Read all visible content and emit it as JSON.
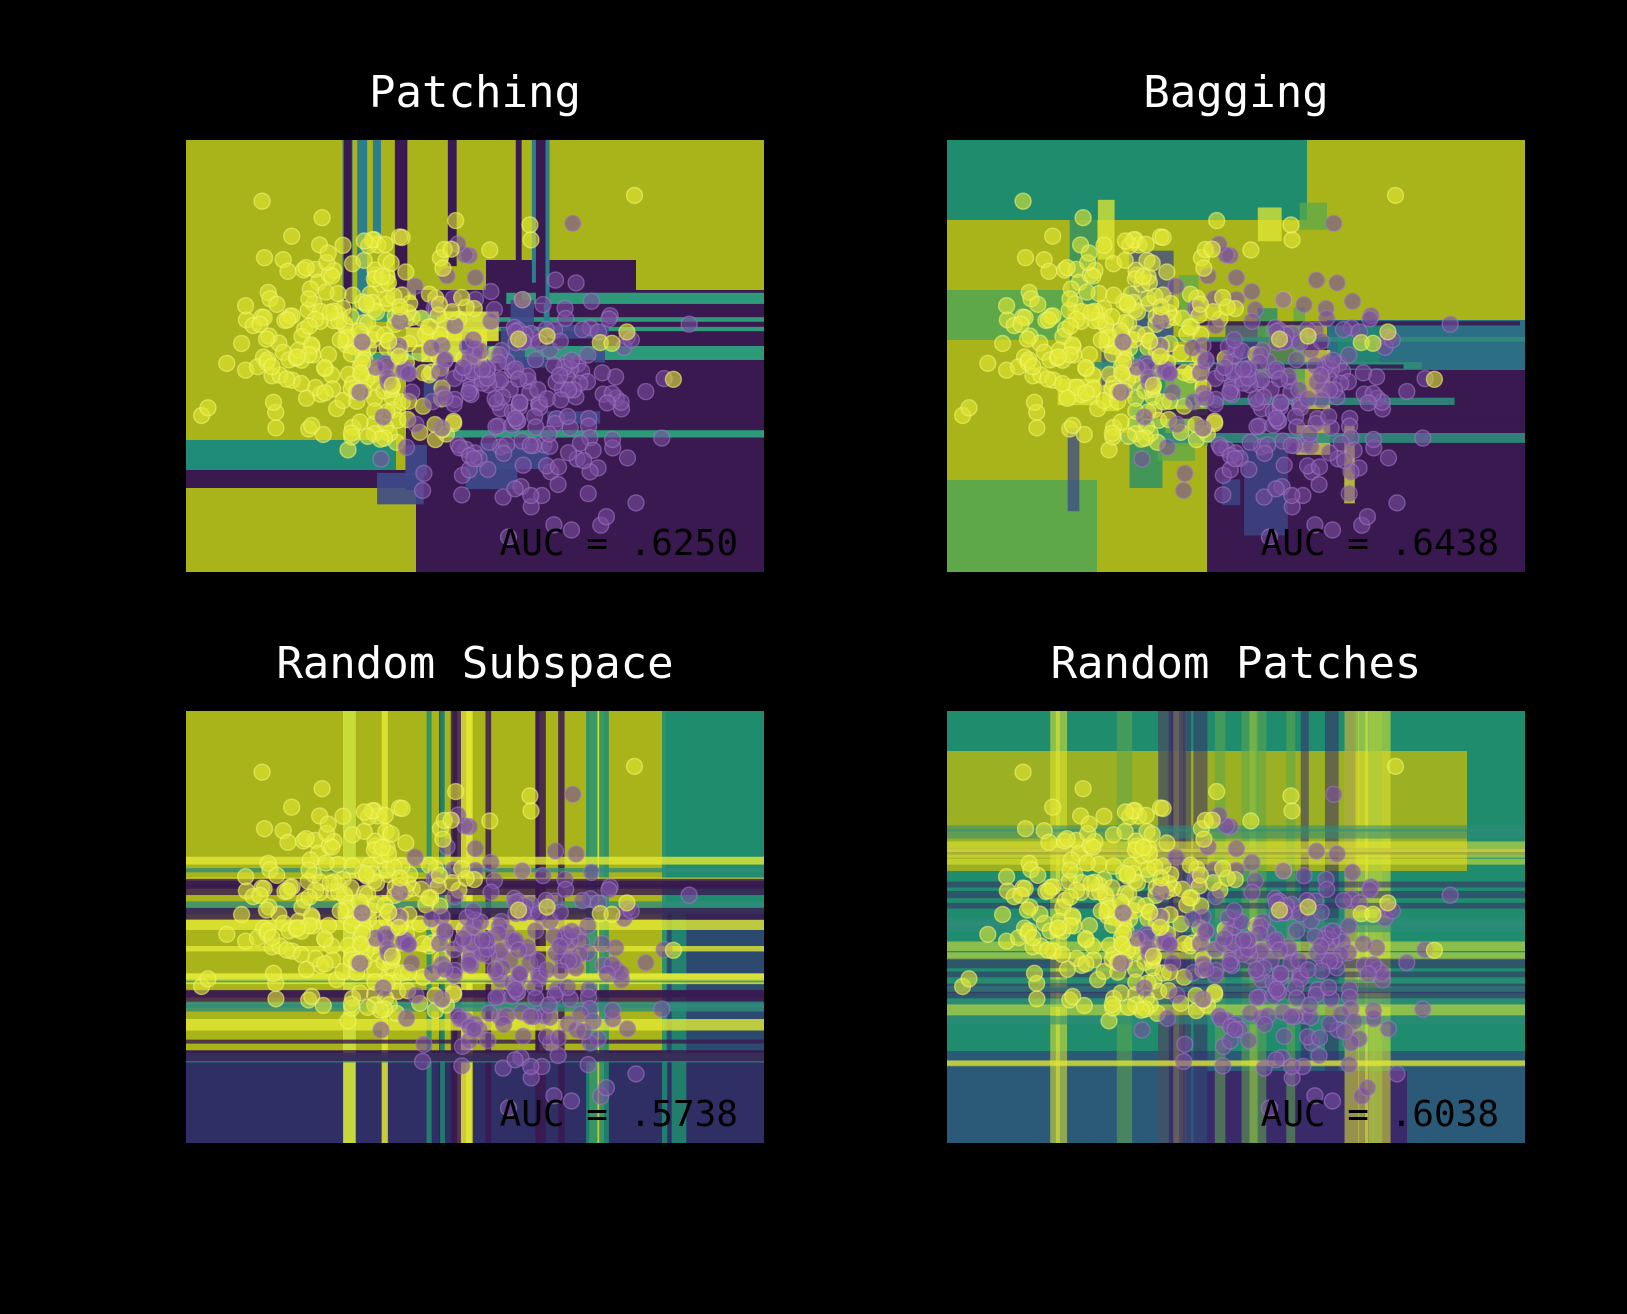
{
  "colors": {
    "background": "#000000",
    "class_a_region": "#a8b41a",
    "class_b_region": "#3a1850",
    "point_class_a": "#e2e833",
    "point_class_b": "#7a4ea0",
    "mixed_teal": "#1f8c6e",
    "mixed_green": "#5ea84a",
    "mixed_blue": "#2b5a78"
  },
  "chart_data": [
    {
      "type": "scatter",
      "title": "Patching",
      "annotation": "AUC = .6250",
      "auc": 0.625,
      "grid": false,
      "axes_visible": false,
      "style": "sharp-blocks"
    },
    {
      "type": "scatter",
      "title": "Bagging",
      "annotation": "AUC = .6438",
      "auc": 0.6438,
      "grid": false,
      "axes_visible": false,
      "style": "blocky-blend"
    },
    {
      "type": "scatter",
      "title": "Random Subspace",
      "annotation": "AUC = .5738",
      "auc": 0.5738,
      "grid": false,
      "axes_visible": false,
      "style": "axis-stripes"
    },
    {
      "type": "scatter",
      "title": "Random Patches",
      "annotation": "AUC = .6038",
      "auc": 0.6038,
      "grid": false,
      "axes_visible": false,
      "style": "soft-stripes"
    }
  ]
}
